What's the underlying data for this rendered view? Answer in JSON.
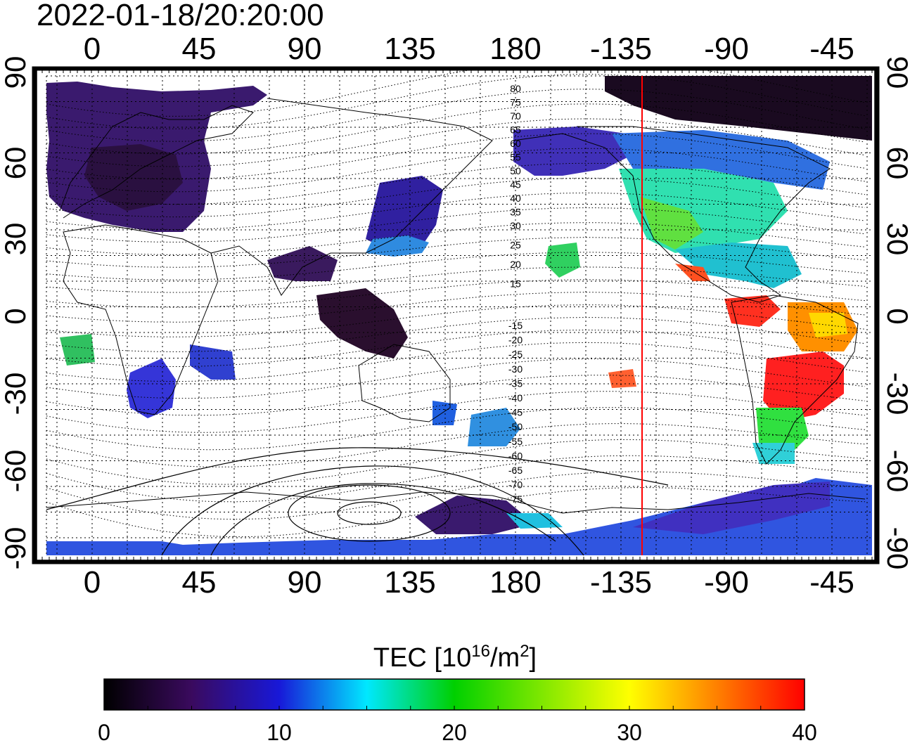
{
  "title": "2022-01-18/20:20:00",
  "map": {
    "lon_ticks_top": [
      "0",
      "45",
      "90",
      "135",
      "180",
      "-135",
      "-90",
      "-45"
    ],
    "lon_ticks_bottom": [
      "0",
      "45",
      "90",
      "135",
      "180",
      "-135",
      "-90",
      "-45"
    ],
    "lat_ticks_left": [
      "90",
      "60",
      "30",
      "0",
      "-30",
      "-60",
      "-90"
    ],
    "lat_ticks_right": [
      "90",
      "60",
      "30",
      "0",
      "-30",
      "-60",
      "-90"
    ],
    "contour_labels_north": [
      "80",
      "75",
      "70",
      "65",
      "60",
      "55",
      "50",
      "45",
      "40",
      "35",
      "30",
      "25",
      "20",
      "15"
    ],
    "contour_labels_south": [
      "-15",
      "-20",
      "-25",
      "-30",
      "-35",
      "-40",
      "-45",
      "-50",
      "-55",
      "-60",
      "-65",
      "-70",
      "-75"
    ],
    "terminator_color": "#ff0000"
  },
  "colorbar": {
    "label_main": "TEC  [10",
    "label_sup1": "16",
    "label_mid": "/m",
    "label_sup2": "2",
    "label_end": "]",
    "ticks": [
      "0",
      "10",
      "20",
      "30",
      "40"
    ],
    "stops": [
      "#000000",
      "#3a0a5e",
      "#1818d8",
      "#00e8ff",
      "#00d000",
      "#ffff00",
      "#ff8000",
      "#ff0000"
    ]
  }
}
